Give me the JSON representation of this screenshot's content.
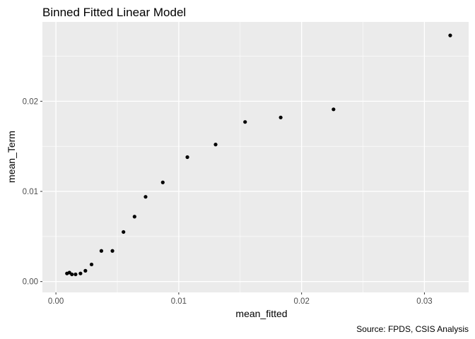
{
  "chart_data": {
    "type": "scatter",
    "title": "Binned Fitted Linear Model",
    "xlabel": "mean_fitted",
    "ylabel": "mean_Term",
    "caption": "Source: FPDS, CSIS Analysis",
    "xlim": [
      -0.0011,
      0.0336
    ],
    "ylim": [
      -0.0012,
      0.0288
    ],
    "x_ticks": [
      {
        "value": 0.0,
        "label": "0.00"
      },
      {
        "value": 0.01,
        "label": "0.01"
      },
      {
        "value": 0.02,
        "label": "0.02"
      },
      {
        "value": 0.03,
        "label": "0.03"
      }
    ],
    "y_ticks": [
      {
        "value": 0.0,
        "label": "0.00"
      },
      {
        "value": 0.01,
        "label": "0.01"
      },
      {
        "value": 0.02,
        "label": "0.02"
      }
    ],
    "grid": true,
    "point_color": "#000000",
    "panel_color": "#ebebeb",
    "grid_color": "#ffffff",
    "points": [
      {
        "x": 0.0009,
        "y": 0.0009
      },
      {
        "x": 0.0011,
        "y": 0.001
      },
      {
        "x": 0.0013,
        "y": 0.0008
      },
      {
        "x": 0.0016,
        "y": 0.0008
      },
      {
        "x": 0.002,
        "y": 0.0009
      },
      {
        "x": 0.0024,
        "y": 0.0012
      },
      {
        "x": 0.0029,
        "y": 0.0019
      },
      {
        "x": 0.0037,
        "y": 0.0034
      },
      {
        "x": 0.0046,
        "y": 0.0034
      },
      {
        "x": 0.0055,
        "y": 0.0055
      },
      {
        "x": 0.0064,
        "y": 0.0072
      },
      {
        "x": 0.0073,
        "y": 0.0094
      },
      {
        "x": 0.0087,
        "y": 0.011
      },
      {
        "x": 0.0107,
        "y": 0.0138
      },
      {
        "x": 0.013,
        "y": 0.0152
      },
      {
        "x": 0.0154,
        "y": 0.0177
      },
      {
        "x": 0.0183,
        "y": 0.0182
      },
      {
        "x": 0.0226,
        "y": 0.0191
      },
      {
        "x": 0.0321,
        "y": 0.0273
      }
    ]
  }
}
